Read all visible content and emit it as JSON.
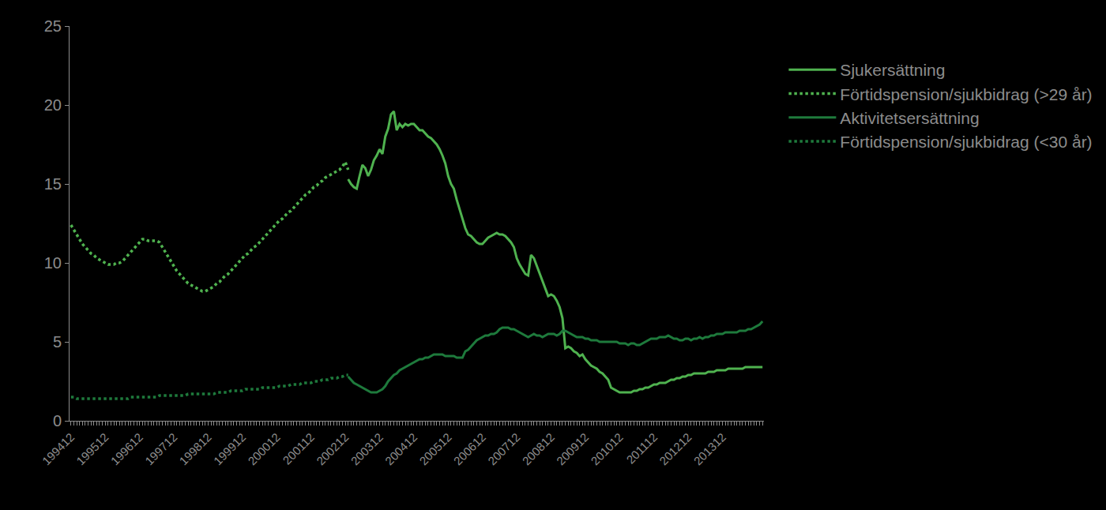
{
  "chart_data": {
    "type": "line",
    "categories": [
      "199412",
      null,
      null,
      null,
      null,
      null,
      null,
      null,
      null,
      null,
      null,
      null,
      "199512",
      null,
      null,
      null,
      null,
      null,
      null,
      null,
      null,
      null,
      null,
      null,
      "199612",
      null,
      null,
      null,
      null,
      null,
      null,
      null,
      null,
      null,
      null,
      null,
      "199712",
      null,
      null,
      null,
      null,
      null,
      null,
      null,
      null,
      null,
      null,
      null,
      "199812",
      null,
      null,
      null,
      null,
      null,
      null,
      null,
      null,
      null,
      null,
      null,
      "199912",
      null,
      null,
      null,
      null,
      null,
      null,
      null,
      null,
      null,
      null,
      null,
      "200012",
      null,
      null,
      null,
      null,
      null,
      null,
      null,
      null,
      null,
      null,
      null,
      "200112",
      null,
      null,
      null,
      null,
      null,
      null,
      null,
      null,
      null,
      null,
      null,
      "200212",
      null,
      null,
      null,
      null,
      null,
      null,
      null,
      null,
      null,
      null,
      null,
      "200312",
      null,
      null,
      null,
      null,
      null,
      null,
      null,
      null,
      null,
      null,
      null,
      "200412",
      null,
      null,
      null,
      null,
      null,
      null,
      null,
      null,
      null,
      null,
      null,
      "200512",
      null,
      null,
      null,
      null,
      null,
      null,
      null,
      null,
      null,
      null,
      null,
      "200612",
      null,
      null,
      null,
      null,
      null,
      null,
      null,
      null,
      null,
      null,
      null,
      "200712",
      null,
      null,
      null,
      null,
      null,
      null,
      null,
      null,
      null,
      null,
      null,
      "200812",
      null,
      null,
      null,
      null,
      null,
      null,
      null,
      null,
      null,
      null,
      null,
      "200912",
      null,
      null,
      null,
      null,
      null,
      null,
      null,
      null,
      null,
      null,
      null,
      "201012",
      null,
      null,
      null,
      null,
      null,
      null,
      null,
      null,
      null,
      null,
      null,
      "201112",
      null,
      null,
      null,
      null,
      null,
      null,
      null,
      null,
      null,
      null,
      null,
      "201212",
      null,
      null,
      null,
      null,
      null,
      null,
      null,
      null,
      null,
      null,
      null,
      "201312",
      null,
      null,
      null,
      null,
      null,
      null,
      null,
      null,
      null,
      null,
      null,
      null,
      null,
      null
    ],
    "ylim": [
      0,
      25
    ],
    "yticks": [
      0,
      5,
      10,
      15,
      20,
      25
    ],
    "grid": false,
    "legend": "right",
    "series": [
      {
        "name": "Sjukersättning",
        "color": "#4fb24f",
        "line_style": "solid",
        "values": [
          null,
          null,
          null,
          null,
          null,
          null,
          null,
          null,
          null,
          null,
          null,
          null,
          null,
          null,
          null,
          null,
          null,
          null,
          null,
          null,
          null,
          null,
          null,
          null,
          null,
          null,
          null,
          null,
          null,
          null,
          null,
          null,
          null,
          null,
          null,
          null,
          null,
          null,
          null,
          null,
          null,
          null,
          null,
          null,
          null,
          null,
          null,
          null,
          null,
          null,
          null,
          null,
          null,
          null,
          null,
          null,
          null,
          null,
          null,
          null,
          null,
          null,
          null,
          null,
          null,
          null,
          null,
          null,
          null,
          null,
          null,
          null,
          null,
          null,
          null,
          null,
          null,
          null,
          null,
          null,
          null,
          null,
          null,
          null,
          null,
          null,
          null,
          null,
          null,
          null,
          null,
          null,
          null,
          null,
          null,
          null,
          null,
          15.3,
          15.0,
          14.8,
          14.7,
          15.5,
          16.2,
          16.0,
          15.5,
          15.9,
          16.5,
          16.8,
          17.2,
          16.9,
          18.0,
          18.5,
          19.4,
          19.6,
          18.4,
          18.8,
          18.6,
          18.8,
          18.7,
          18.8,
          18.8,
          18.6,
          18.4,
          18.4,
          18.2,
          18.0,
          17.9,
          17.7,
          17.5,
          17.2,
          16.8,
          16.3,
          15.5,
          15.0,
          14.7,
          14.0,
          13.4,
          12.8,
          12.2,
          11.8,
          11.7,
          11.5,
          11.3,
          11.2,
          11.2,
          11.4,
          11.6,
          11.7,
          11.8,
          11.9,
          11.8,
          11.8,
          11.7,
          11.5,
          11.3,
          11.0,
          10.3,
          9.9,
          9.6,
          9.3,
          9.2,
          10.5,
          10.3,
          9.8,
          9.3,
          8.8,
          8.3,
          7.9,
          8.0,
          7.9,
          7.6,
          7.2,
          6.5,
          4.6,
          4.7,
          4.6,
          4.4,
          4.3,
          4.1,
          4.2,
          3.9,
          3.7,
          3.5,
          3.4,
          3.3,
          3.1,
          3.0,
          2.8,
          2.6,
          2.1,
          2.0,
          1.9,
          1.8,
          1.8,
          1.8,
          1.8,
          1.8,
          1.9,
          1.9,
          2.0,
          2.0,
          2.1,
          2.1,
          2.2,
          2.3,
          2.3,
          2.4,
          2.4,
          2.4,
          2.5,
          2.6,
          2.6,
          2.7,
          2.7,
          2.8,
          2.8,
          2.9,
          2.9,
          3.0,
          3.0,
          3.0,
          3.0,
          3.0,
          3.1,
          3.1,
          3.1,
          3.2,
          3.2,
          3.2,
          3.2,
          3.3,
          3.3,
          3.3,
          3.3,
          3.3,
          3.3,
          3.4,
          3.4,
          3.4,
          3.4,
          3.4,
          3.4,
          3.4
        ]
      },
      {
        "name": "Förtidspension/sjukbidrag (>29 år)",
        "color": "#4fb24f",
        "line_style": "dotted",
        "values": [
          12.4,
          12.1,
          11.8,
          11.5,
          11.2,
          11.0,
          10.8,
          10.6,
          10.5,
          10.3,
          10.2,
          10.1,
          10.0,
          9.9,
          9.9,
          9.9,
          10.0,
          10.0,
          10.1,
          10.3,
          10.5,
          10.7,
          10.9,
          11.1,
          11.3,
          11.5,
          11.5,
          11.4,
          11.4,
          11.4,
          11.4,
          11.3,
          11.0,
          10.7,
          10.4,
          10.1,
          9.8,
          9.5,
          9.3,
          9.1,
          8.9,
          8.7,
          8.6,
          8.5,
          8.4,
          8.3,
          8.2,
          8.2,
          8.3,
          8.4,
          8.5,
          8.7,
          8.8,
          9.0,
          9.2,
          9.3,
          9.5,
          9.7,
          9.9,
          10.1,
          10.3,
          10.5,
          10.6,
          10.8,
          11.0,
          11.1,
          11.3,
          11.5,
          11.7,
          11.9,
          12.1,
          12.3,
          12.5,
          12.7,
          12.8,
          13.0,
          13.2,
          13.3,
          13.5,
          13.7,
          13.9,
          14.1,
          14.3,
          14.4,
          14.6,
          14.8,
          14.9,
          15.1,
          15.2,
          15.4,
          15.5,
          15.6,
          15.7,
          15.8,
          15.9,
          16.1,
          16.4,
          15.9,
          null,
          null,
          null,
          null,
          null,
          null,
          null,
          null,
          null,
          null,
          null,
          null,
          null,
          null,
          null,
          null,
          null,
          null,
          null,
          null,
          null,
          null,
          null,
          null,
          null,
          null,
          null,
          null,
          null,
          null,
          null,
          null,
          null,
          null,
          null,
          null,
          null,
          null,
          null,
          null,
          null,
          null,
          null,
          null,
          null,
          null,
          null,
          null,
          null,
          null,
          null,
          null,
          null,
          null,
          null,
          null,
          null,
          null,
          null,
          null,
          null,
          null,
          null,
          null,
          null,
          null,
          null,
          null,
          null,
          null,
          null,
          null,
          null,
          null,
          null,
          null,
          null,
          null,
          null,
          null,
          null,
          null,
          null,
          null,
          null,
          null,
          null,
          null,
          null,
          null,
          null,
          null,
          null,
          null,
          null,
          null,
          null,
          null,
          null,
          null,
          null,
          null,
          null,
          null,
          null,
          null,
          null,
          null,
          null,
          null,
          null,
          null,
          null,
          null,
          null,
          null,
          null,
          null,
          null,
          null,
          null,
          null,
          null,
          null,
          null,
          null,
          null,
          null,
          null,
          null,
          null,
          null,
          null,
          null,
          null,
          null,
          null,
          null,
          null,
          null,
          null,
          null,
          null,
          null,
          null
        ]
      },
      {
        "name": "Aktivitetsersättning",
        "color": "#1e7a3c",
        "line_style": "solid",
        "values": [
          null,
          null,
          null,
          null,
          null,
          null,
          null,
          null,
          null,
          null,
          null,
          null,
          null,
          null,
          null,
          null,
          null,
          null,
          null,
          null,
          null,
          null,
          null,
          null,
          null,
          null,
          null,
          null,
          null,
          null,
          null,
          null,
          null,
          null,
          null,
          null,
          null,
          null,
          null,
          null,
          null,
          null,
          null,
          null,
          null,
          null,
          null,
          null,
          null,
          null,
          null,
          null,
          null,
          null,
          null,
          null,
          null,
          null,
          null,
          null,
          null,
          null,
          null,
          null,
          null,
          null,
          null,
          null,
          null,
          null,
          null,
          null,
          null,
          null,
          null,
          null,
          null,
          null,
          null,
          null,
          null,
          null,
          null,
          null,
          null,
          null,
          null,
          null,
          null,
          null,
          null,
          null,
          null,
          null,
          null,
          null,
          null,
          2.8,
          2.6,
          2.4,
          2.3,
          2.2,
          2.1,
          2.0,
          1.9,
          1.8,
          1.8,
          1.8,
          1.9,
          2.0,
          2.2,
          2.5,
          2.7,
          2.9,
          3.0,
          3.2,
          3.3,
          3.4,
          3.5,
          3.6,
          3.7,
          3.8,
          3.9,
          3.9,
          4.0,
          4.0,
          4.1,
          4.2,
          4.2,
          4.2,
          4.2,
          4.1,
          4.1,
          4.1,
          4.1,
          4.0,
          4.0,
          4.0,
          4.4,
          4.5,
          4.7,
          4.9,
          5.1,
          5.2,
          5.3,
          5.4,
          5.4,
          5.5,
          5.5,
          5.6,
          5.8,
          5.9,
          5.9,
          5.9,
          5.8,
          5.8,
          5.7,
          5.6,
          5.5,
          5.4,
          5.3,
          5.4,
          5.5,
          5.4,
          5.4,
          5.3,
          5.4,
          5.5,
          5.5,
          5.5,
          5.4,
          5.5,
          5.7,
          5.7,
          5.6,
          5.5,
          5.4,
          5.3,
          5.3,
          5.3,
          5.2,
          5.2,
          5.1,
          5.1,
          5.1,
          5.0,
          5.0,
          5.0,
          5.0,
          5.0,
          5.0,
          5.0,
          4.9,
          4.9,
          4.9,
          4.8,
          4.9,
          4.9,
          4.8,
          4.8,
          4.9,
          5.0,
          5.1,
          5.2,
          5.2,
          5.2,
          5.3,
          5.3,
          5.3,
          5.4,
          5.3,
          5.2,
          5.2,
          5.1,
          5.1,
          5.2,
          5.2,
          5.1,
          5.2,
          5.2,
          5.3,
          5.2,
          5.3,
          5.3,
          5.4,
          5.4,
          5.5,
          5.5,
          5.5,
          5.6,
          5.6,
          5.6,
          5.6,
          5.6,
          5.7,
          5.7,
          5.7,
          5.8,
          5.8,
          5.9,
          6.0,
          6.1,
          6.3
        ]
      },
      {
        "name": "Förtidspension/sjukbidrag (<30 år)",
        "color": "#1e7a3c",
        "line_style": "dotted",
        "values": [
          1.5,
          1.5,
          1.4,
          1.4,
          1.4,
          1.4,
          1.4,
          1.4,
          1.4,
          1.4,
          1.4,
          1.4,
          1.4,
          1.4,
          1.4,
          1.4,
          1.4,
          1.4,
          1.4,
          1.4,
          1.4,
          1.5,
          1.5,
          1.5,
          1.5,
          1.5,
          1.5,
          1.5,
          1.5,
          1.5,
          1.5,
          1.6,
          1.6,
          1.6,
          1.6,
          1.6,
          1.6,
          1.6,
          1.6,
          1.6,
          1.6,
          1.7,
          1.7,
          1.7,
          1.7,
          1.7,
          1.7,
          1.7,
          1.7,
          1.7,
          1.7,
          1.8,
          1.8,
          1.8,
          1.8,
          1.8,
          1.9,
          1.9,
          1.9,
          1.9,
          1.9,
          2.0,
          2.0,
          2.0,
          2.0,
          2.0,
          2.0,
          2.1,
          2.1,
          2.1,
          2.1,
          2.1,
          2.1,
          2.2,
          2.2,
          2.2,
          2.2,
          2.3,
          2.3,
          2.3,
          2.3,
          2.4,
          2.4,
          2.4,
          2.4,
          2.5,
          2.5,
          2.5,
          2.6,
          2.6,
          2.6,
          2.7,
          2.7,
          2.7,
          2.8,
          2.8,
          2.9,
          2.9,
          null,
          null,
          null,
          null,
          null,
          null,
          null,
          null,
          null,
          null,
          null,
          null,
          null,
          null,
          null,
          null,
          null,
          null,
          null,
          null,
          null,
          null,
          null,
          null,
          null,
          null,
          null,
          null,
          null,
          null,
          null,
          null,
          null,
          null,
          null,
          null,
          null,
          null,
          null,
          null,
          null,
          null,
          null,
          null,
          null,
          null,
          null,
          null,
          null,
          null,
          null,
          null,
          null,
          null,
          null,
          null,
          null,
          null,
          null,
          null,
          null,
          null,
          null,
          null,
          null,
          null,
          null,
          null,
          null,
          null,
          null,
          null,
          null,
          null,
          null,
          null,
          null,
          null,
          null,
          null,
          null,
          null,
          null,
          null,
          null,
          null,
          null,
          null,
          null,
          null,
          null,
          null,
          null,
          null,
          null,
          null,
          null,
          null,
          null,
          null,
          null,
          null,
          null,
          null,
          null,
          null,
          null,
          null,
          null,
          null,
          null,
          null,
          null,
          null,
          null,
          null,
          null,
          null,
          null,
          null,
          null,
          null,
          null,
          null,
          null,
          null,
          null,
          null,
          null,
          null,
          null,
          null,
          null,
          null,
          null,
          null,
          null,
          null,
          null,
          null,
          null,
          null,
          null,
          null,
          null
        ]
      }
    ]
  }
}
